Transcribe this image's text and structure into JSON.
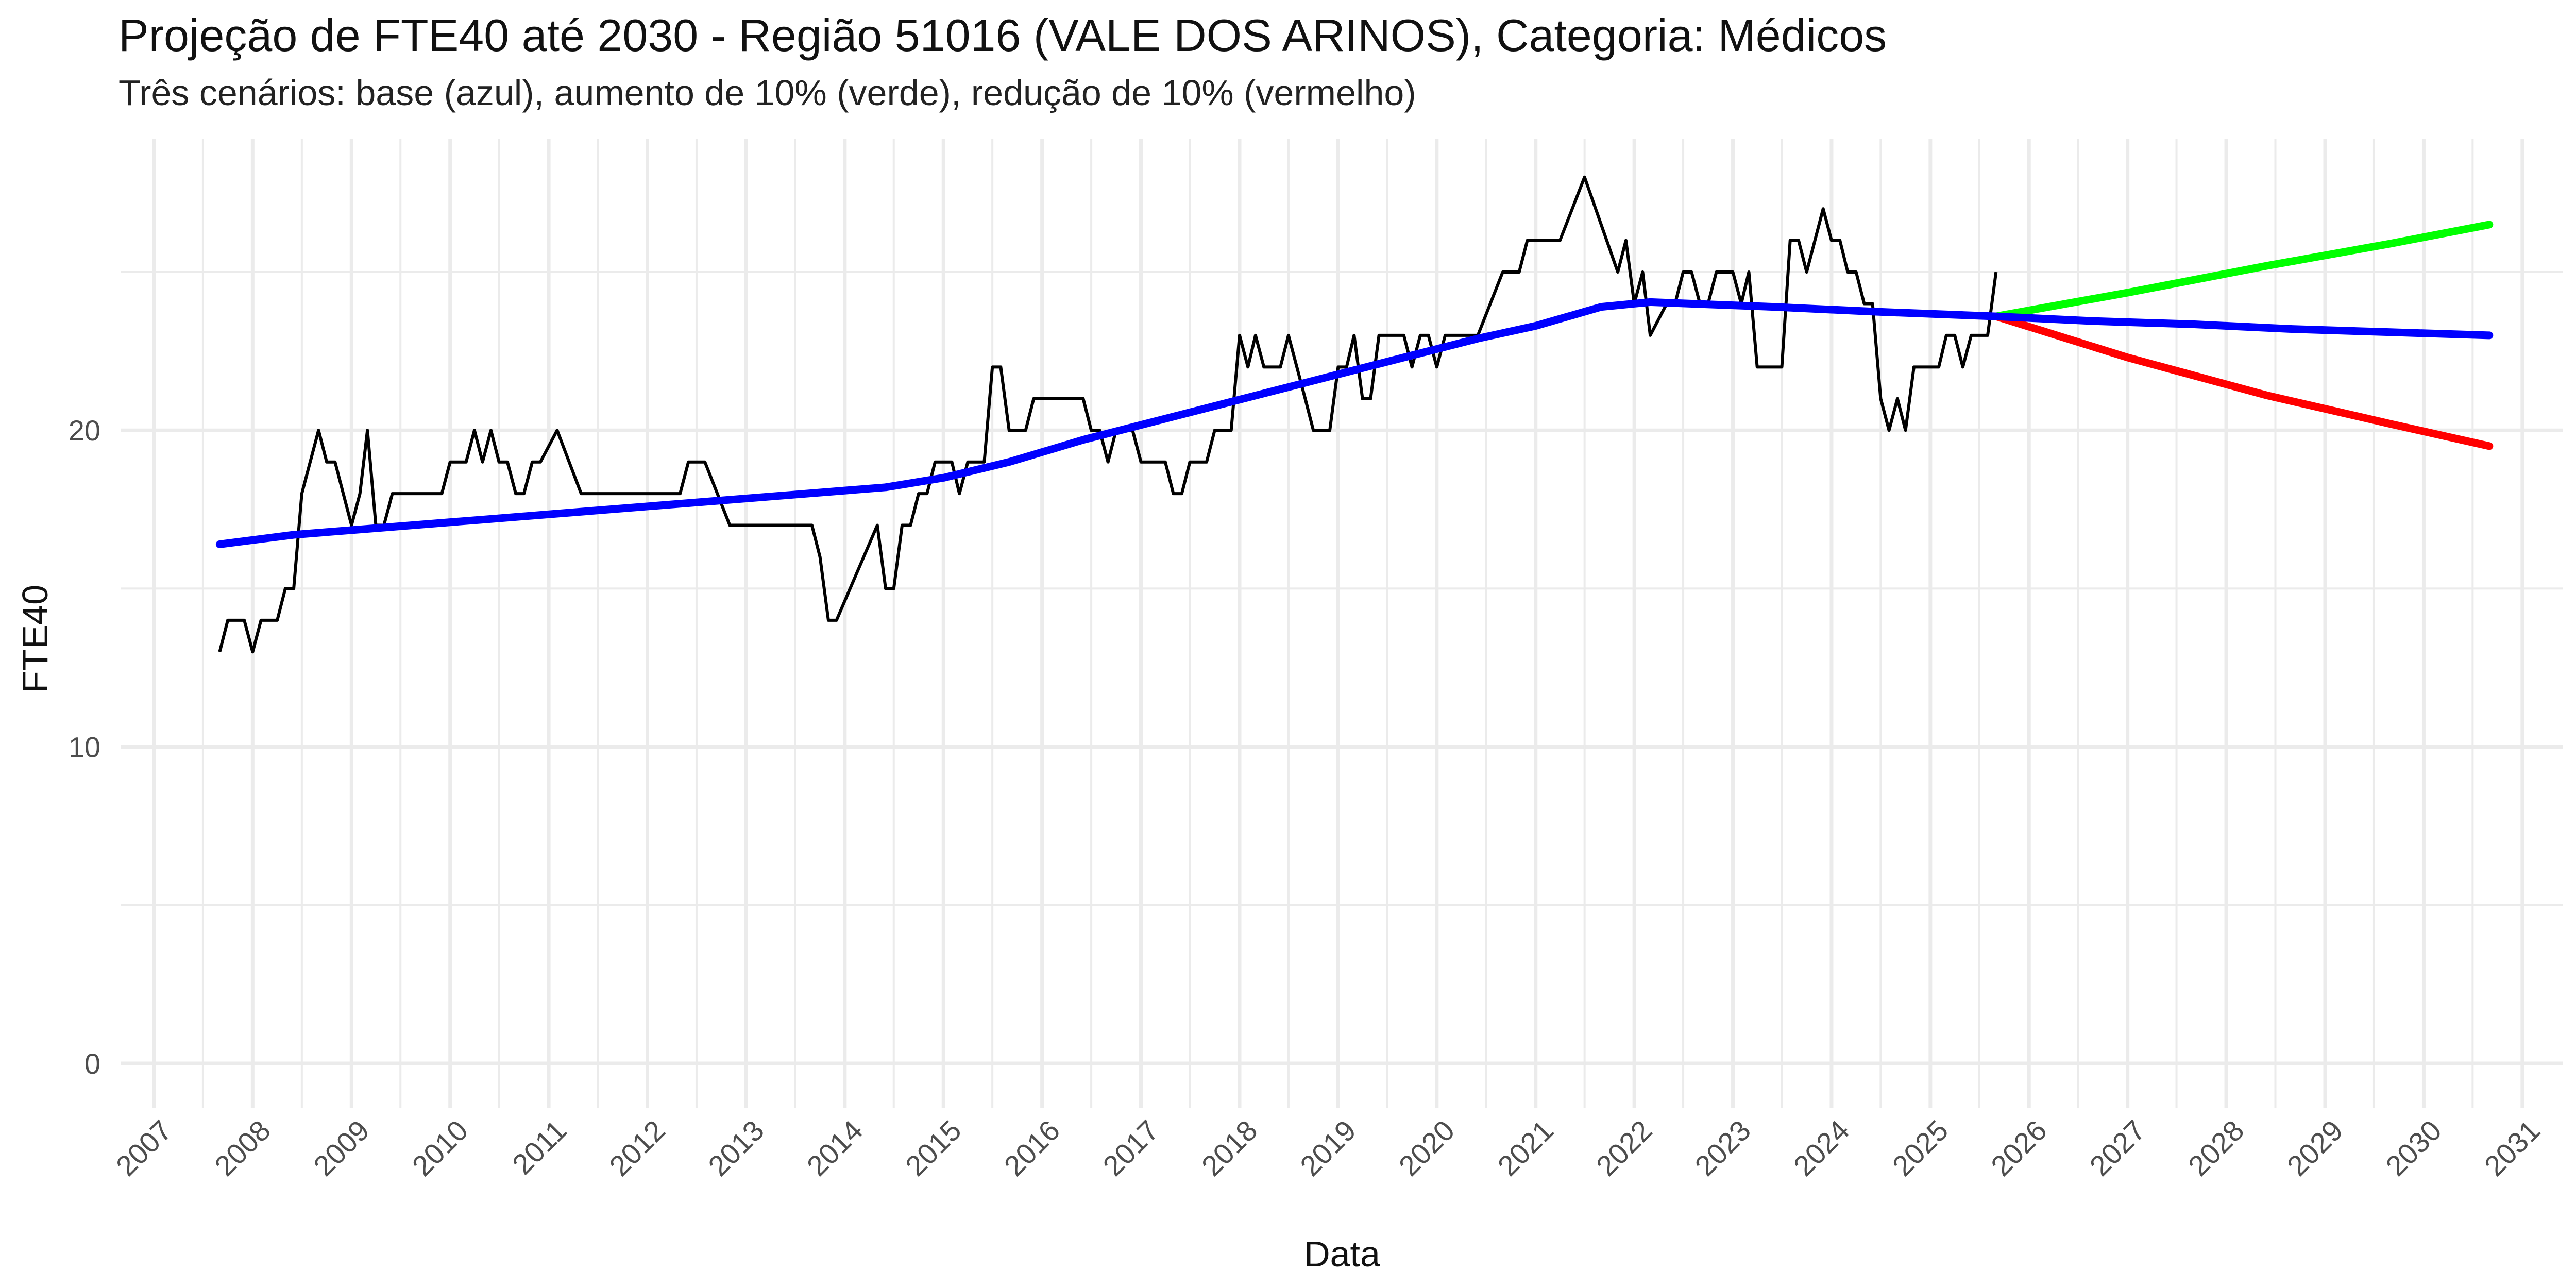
{
  "chart_data": {
    "type": "line",
    "title": "Projeção de FTE40 até 2030 - Região 51016 (VALE DOS ARINOS), Categoria: Médicos",
    "subtitle": "Três cenários: base (azul), aumento de 10% (verde), redução de 10% (vermelho)",
    "xlabel": "Data",
    "ylabel": "FTE40",
    "x_tick_labels": [
      "2007",
      "2008",
      "2009",
      "2010",
      "2011",
      "2012",
      "2013",
      "2014",
      "2015",
      "2016",
      "2017",
      "2018",
      "2019",
      "2020",
      "2021",
      "2022",
      "2023",
      "2024",
      "2025",
      "2026",
      "2027",
      "2028",
      "2029",
      "2030",
      "2031"
    ],
    "y_ticks": [
      0,
      10,
      20
    ],
    "xlim": [
      "2006-09-01",
      "2031-06-01"
    ],
    "ylim": [
      -1.4,
      29.2
    ],
    "grid": true,
    "colors": {
      "observed": "#000000",
      "base": "#0000ff",
      "increase": "#00ff00",
      "decrease": "#ff0000",
      "grid": "#ebebeb"
    },
    "series": [
      {
        "key": "observed",
        "points": [
          [
            "2007-09",
            13
          ],
          [
            "2007-10",
            14
          ],
          [
            "2007-11",
            14
          ],
          [
            "2007-12",
            14
          ],
          [
            "2008-01",
            13
          ],
          [
            "2008-02",
            14
          ],
          [
            "2008-03",
            14
          ],
          [
            "2008-04",
            14
          ],
          [
            "2008-05",
            15
          ],
          [
            "2008-06",
            15
          ],
          [
            "2008-07",
            18
          ],
          [
            "2008-09",
            20
          ],
          [
            "2008-10",
            19
          ],
          [
            "2008-11",
            19
          ],
          [
            "2009-01",
            17
          ],
          [
            "2009-02",
            18
          ],
          [
            "2009-03",
            20
          ],
          [
            "2009-04",
            17
          ],
          [
            "2009-05",
            17
          ],
          [
            "2009-06",
            18
          ],
          [
            "2009-08",
            18
          ],
          [
            "2009-12",
            18
          ],
          [
            "2010-01",
            19
          ],
          [
            "2010-02",
            19
          ],
          [
            "2010-03",
            19
          ],
          [
            "2010-04",
            20
          ],
          [
            "2010-05",
            19
          ],
          [
            "2010-06",
            20
          ],
          [
            "2010-07",
            19
          ],
          [
            "2010-08",
            19
          ],
          [
            "2010-09",
            18
          ],
          [
            "2010-10",
            18
          ],
          [
            "2010-11",
            19
          ],
          [
            "2010-12",
            19
          ],
          [
            "2011-02",
            20
          ],
          [
            "2011-05",
            18
          ],
          [
            "2012-04",
            18
          ],
          [
            "2012-05",
            18
          ],
          [
            "2012-06",
            19
          ],
          [
            "2012-08",
            19
          ],
          [
            "2012-11",
            17
          ],
          [
            "2013-09",
            17
          ],
          [
            "2013-10",
            16
          ],
          [
            "2013-11",
            14
          ],
          [
            "2013-12",
            14
          ],
          [
            "2014-05",
            17
          ],
          [
            "2014-06",
            15
          ],
          [
            "2014-07",
            15
          ],
          [
            "2014-08",
            17
          ],
          [
            "2014-09",
            17
          ],
          [
            "2014-10",
            18
          ],
          [
            "2014-11",
            18
          ],
          [
            "2014-12",
            19
          ],
          [
            "2015-02",
            19
          ],
          [
            "2015-03",
            18
          ],
          [
            "2015-04",
            19
          ],
          [
            "2015-06",
            19
          ],
          [
            "2015-07",
            22
          ],
          [
            "2015-08",
            22
          ],
          [
            "2015-09",
            20
          ],
          [
            "2015-11",
            20
          ],
          [
            "2015-12",
            21
          ],
          [
            "2016-06",
            21
          ],
          [
            "2016-07",
            20
          ],
          [
            "2016-08",
            20
          ],
          [
            "2016-09",
            19
          ],
          [
            "2016-10",
            20
          ],
          [
            "2016-11",
            20
          ],
          [
            "2016-12",
            20
          ],
          [
            "2017-01",
            19
          ],
          [
            "2017-04",
            19
          ],
          [
            "2017-05",
            18
          ],
          [
            "2017-06",
            18
          ],
          [
            "2017-07",
            19
          ],
          [
            "2017-09",
            19
          ],
          [
            "2017-10",
            20
          ],
          [
            "2017-12",
            20
          ],
          [
            "2018-01",
            23
          ],
          [
            "2018-02",
            22
          ],
          [
            "2018-03",
            23
          ],
          [
            "2018-04",
            22
          ],
          [
            "2018-06",
            22
          ],
          [
            "2018-07",
            23
          ],
          [
            "2018-09",
            21
          ],
          [
            "2018-10",
            20
          ],
          [
            "2018-12",
            20
          ],
          [
            "2019-01",
            22
          ],
          [
            "2019-02",
            22
          ],
          [
            "2019-03",
            23
          ],
          [
            "2019-04",
            21
          ],
          [
            "2019-05",
            21
          ],
          [
            "2019-06",
            23
          ],
          [
            "2019-09",
            23
          ],
          [
            "2019-10",
            22
          ],
          [
            "2019-11",
            23
          ],
          [
            "2019-12",
            23
          ],
          [
            "2020-01",
            22
          ],
          [
            "2020-02",
            23
          ],
          [
            "2020-06",
            23
          ],
          [
            "2020-09",
            25
          ],
          [
            "2020-11",
            25
          ],
          [
            "2020-12",
            26
          ],
          [
            "2021-04",
            26
          ],
          [
            "2021-07",
            28
          ],
          [
            "2021-11",
            25
          ],
          [
            "2021-12",
            26
          ],
          [
            "2022-01",
            24
          ],
          [
            "2022-02",
            25
          ],
          [
            "2022-03",
            23
          ],
          [
            "2022-05",
            24
          ],
          [
            "2022-06",
            24
          ],
          [
            "2022-07",
            25
          ],
          [
            "2022-08",
            25
          ],
          [
            "2022-09",
            24
          ],
          [
            "2022-10",
            24
          ],
          [
            "2022-11",
            25
          ],
          [
            "2023-01",
            25
          ],
          [
            "2023-02",
            24
          ],
          [
            "2023-03",
            25
          ],
          [
            "2023-04",
            22
          ],
          [
            "2023-06",
            22
          ],
          [
            "2023-07",
            22
          ],
          [
            "2023-08",
            26
          ],
          [
            "2023-09",
            26
          ],
          [
            "2023-10",
            25
          ],
          [
            "2023-12",
            27
          ],
          [
            "2024-01",
            26
          ],
          [
            "2024-02",
            26
          ],
          [
            "2024-03",
            25
          ],
          [
            "2024-04",
            25
          ],
          [
            "2024-05",
            24
          ],
          [
            "2024-06",
            24
          ],
          [
            "2024-07",
            21
          ],
          [
            "2024-08",
            20
          ],
          [
            "2024-09",
            21
          ],
          [
            "2024-10",
            20
          ],
          [
            "2024-11",
            22
          ],
          [
            "2025-02",
            22
          ],
          [
            "2025-03",
            23
          ],
          [
            "2025-04",
            23
          ],
          [
            "2025-05",
            22
          ],
          [
            "2025-06",
            23
          ],
          [
            "2025-08",
            23
          ],
          [
            "2025-09",
            25
          ]
        ]
      },
      {
        "key": "base",
        "points": [
          [
            "2007-09",
            16.4
          ],
          [
            "2008-06",
            16.7
          ],
          [
            "2009-06",
            16.95
          ],
          [
            "2010-06",
            17.2
          ],
          [
            "2011-06",
            17.45
          ],
          [
            "2012-06",
            17.7
          ],
          [
            "2013-06",
            17.95
          ],
          [
            "2014-06",
            18.2
          ],
          [
            "2015-01",
            18.5
          ],
          [
            "2015-09",
            19.0
          ],
          [
            "2016-06",
            19.7
          ],
          [
            "2017-06",
            20.5
          ],
          [
            "2018-06",
            21.3
          ],
          [
            "2019-06",
            22.1
          ],
          [
            "2020-06",
            22.9
          ],
          [
            "2021-01",
            23.3
          ],
          [
            "2021-09",
            23.9
          ],
          [
            "2022-03",
            24.05
          ],
          [
            "2023-06",
            23.9
          ],
          [
            "2024-06",
            23.75
          ],
          [
            "2025-09",
            23.6
          ],
          [
            "2026-09",
            23.45
          ],
          [
            "2027-09",
            23.35
          ],
          [
            "2028-09",
            23.2
          ],
          [
            "2029-09",
            23.1
          ],
          [
            "2030-09",
            23.0
          ]
        ]
      },
      {
        "key": "increase",
        "points": [
          [
            "2025-09",
            23.6
          ],
          [
            "2027-01",
            24.35
          ],
          [
            "2028-06",
            25.2
          ],
          [
            "2029-09",
            25.9
          ],
          [
            "2030-09",
            26.5
          ]
        ]
      },
      {
        "key": "decrease",
        "points": [
          [
            "2025-09",
            23.6
          ],
          [
            "2027-01",
            22.3
          ],
          [
            "2028-06",
            21.1
          ],
          [
            "2029-09",
            20.2
          ],
          [
            "2030-09",
            19.5
          ]
        ]
      }
    ]
  }
}
